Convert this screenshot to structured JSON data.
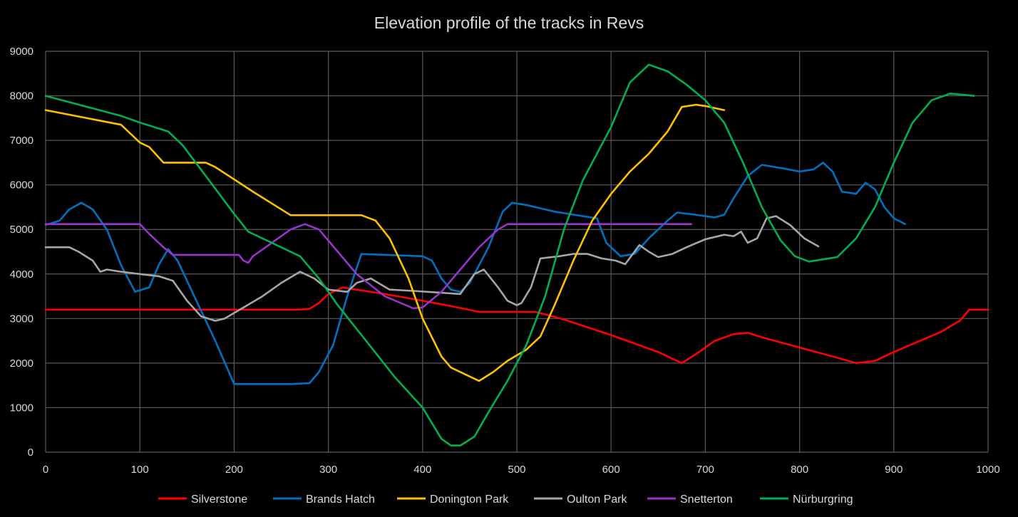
{
  "chart_data": {
    "type": "line",
    "title": "Elevation profile of the tracks in Revs",
    "xlabel": "",
    "ylabel": "",
    "xlim": [
      0,
      1000
    ],
    "ylim": [
      0,
      9000
    ],
    "x_ticks": [
      0,
      100,
      200,
      300,
      400,
      500,
      600,
      700,
      800,
      900,
      1000
    ],
    "y_ticks": [
      0,
      1000,
      2000,
      3000,
      4000,
      5000,
      6000,
      7000,
      8000,
      9000
    ],
    "grid": true,
    "legend_position": "bottom",
    "background": "#000000",
    "series": [
      {
        "name": "Silverstone",
        "color": "#ff0000",
        "points": [
          [
            0,
            3200
          ],
          [
            270,
            3200
          ],
          [
            280,
            3220
          ],
          [
            290,
            3350
          ],
          [
            300,
            3550
          ],
          [
            315,
            3700
          ],
          [
            330,
            3650
          ],
          [
            360,
            3550
          ],
          [
            400,
            3400
          ],
          [
            430,
            3280
          ],
          [
            460,
            3150
          ],
          [
            500,
            3150
          ],
          [
            520,
            3150
          ],
          [
            550,
            2980
          ],
          [
            600,
            2630
          ],
          [
            650,
            2250
          ],
          [
            675,
            2000
          ],
          [
            690,
            2200
          ],
          [
            710,
            2500
          ],
          [
            730,
            2650
          ],
          [
            745,
            2680
          ],
          [
            760,
            2580
          ],
          [
            800,
            2350
          ],
          [
            840,
            2120
          ],
          [
            860,
            2000
          ],
          [
            880,
            2050
          ],
          [
            900,
            2250
          ],
          [
            950,
            2700
          ],
          [
            970,
            2950
          ],
          [
            980,
            3200
          ],
          [
            1000,
            3200
          ]
        ]
      },
      {
        "name": "Brands Hatch",
        "color": "#0070c0",
        "points": [
          [
            0,
            5100
          ],
          [
            15,
            5200
          ],
          [
            25,
            5450
          ],
          [
            38,
            5600
          ],
          [
            50,
            5450
          ],
          [
            65,
            5000
          ],
          [
            80,
            4200
          ],
          [
            95,
            3600
          ],
          [
            110,
            3700
          ],
          [
            120,
            4200
          ],
          [
            130,
            4560
          ],
          [
            140,
            4300
          ],
          [
            160,
            3400
          ],
          [
            180,
            2500
          ],
          [
            200,
            1530
          ],
          [
            260,
            1530
          ],
          [
            280,
            1550
          ],
          [
            290,
            1800
          ],
          [
            305,
            2400
          ],
          [
            320,
            3500
          ],
          [
            335,
            4450
          ],
          [
            400,
            4400
          ],
          [
            410,
            4300
          ],
          [
            420,
            3900
          ],
          [
            430,
            3650
          ],
          [
            440,
            3600
          ],
          [
            450,
            3800
          ],
          [
            470,
            4600
          ],
          [
            485,
            5400
          ],
          [
            495,
            5600
          ],
          [
            510,
            5550
          ],
          [
            540,
            5400
          ],
          [
            570,
            5300
          ],
          [
            585,
            5250
          ],
          [
            595,
            4700
          ],
          [
            610,
            4400
          ],
          [
            625,
            4450
          ],
          [
            640,
            4800
          ],
          [
            660,
            5200
          ],
          [
            670,
            5380
          ],
          [
            690,
            5330
          ],
          [
            710,
            5270
          ],
          [
            720,
            5330
          ],
          [
            730,
            5700
          ],
          [
            745,
            6200
          ],
          [
            760,
            6450
          ],
          [
            780,
            6380
          ],
          [
            800,
            6300
          ],
          [
            815,
            6350
          ],
          [
            825,
            6500
          ],
          [
            835,
            6300
          ],
          [
            845,
            5850
          ],
          [
            860,
            5800
          ],
          [
            870,
            6050
          ],
          [
            880,
            5900
          ],
          [
            890,
            5500
          ],
          [
            900,
            5250
          ],
          [
            912,
            5120
          ]
        ]
      },
      {
        "name": "Donington Park",
        "color": "#ffc000",
        "points": [
          [
            0,
            7680
          ],
          [
            80,
            7350
          ],
          [
            100,
            6950
          ],
          [
            110,
            6850
          ],
          [
            125,
            6500
          ],
          [
            170,
            6500
          ],
          [
            180,
            6400
          ],
          [
            220,
            5850
          ],
          [
            260,
            5320
          ],
          [
            275,
            5320
          ],
          [
            335,
            5320
          ],
          [
            350,
            5200
          ],
          [
            365,
            4800
          ],
          [
            385,
            3900
          ],
          [
            400,
            3000
          ],
          [
            420,
            2150
          ],
          [
            430,
            1900
          ],
          [
            450,
            1700
          ],
          [
            460,
            1600
          ],
          [
            475,
            1800
          ],
          [
            490,
            2050
          ],
          [
            510,
            2300
          ],
          [
            525,
            2600
          ],
          [
            540,
            3300
          ],
          [
            560,
            4300
          ],
          [
            580,
            5200
          ],
          [
            600,
            5800
          ],
          [
            620,
            6300
          ],
          [
            640,
            6700
          ],
          [
            660,
            7200
          ],
          [
            675,
            7750
          ],
          [
            690,
            7800
          ],
          [
            700,
            7770
          ],
          [
            720,
            7680
          ]
        ]
      },
      {
        "name": "Oulton Park",
        "color": "#a6a6a6",
        "points": [
          [
            0,
            4600
          ],
          [
            25,
            4600
          ],
          [
            35,
            4500
          ],
          [
            50,
            4300
          ],
          [
            58,
            4050
          ],
          [
            65,
            4100
          ],
          [
            80,
            4050
          ],
          [
            100,
            4000
          ],
          [
            120,
            3950
          ],
          [
            135,
            3850
          ],
          [
            150,
            3400
          ],
          [
            165,
            3050
          ],
          [
            180,
            2950
          ],
          [
            190,
            3000
          ],
          [
            210,
            3250
          ],
          [
            230,
            3500
          ],
          [
            250,
            3800
          ],
          [
            270,
            4050
          ],
          [
            285,
            3900
          ],
          [
            300,
            3650
          ],
          [
            320,
            3600
          ],
          [
            330,
            3800
          ],
          [
            345,
            3900
          ],
          [
            365,
            3650
          ],
          [
            390,
            3620
          ],
          [
            420,
            3580
          ],
          [
            440,
            3550
          ],
          [
            455,
            4000
          ],
          [
            465,
            4100
          ],
          [
            480,
            3700
          ],
          [
            490,
            3400
          ],
          [
            500,
            3300
          ],
          [
            505,
            3350
          ],
          [
            515,
            3700
          ],
          [
            525,
            4350
          ],
          [
            545,
            4400
          ],
          [
            560,
            4450
          ],
          [
            575,
            4450
          ],
          [
            590,
            4350
          ],
          [
            605,
            4300
          ],
          [
            615,
            4220
          ],
          [
            630,
            4650
          ],
          [
            640,
            4500
          ],
          [
            650,
            4380
          ],
          [
            665,
            4450
          ],
          [
            680,
            4600
          ],
          [
            700,
            4780
          ],
          [
            720,
            4880
          ],
          [
            730,
            4850
          ],
          [
            738,
            4950
          ],
          [
            745,
            4700
          ],
          [
            755,
            4800
          ],
          [
            765,
            5250
          ],
          [
            775,
            5300
          ],
          [
            790,
            5100
          ],
          [
            805,
            4800
          ],
          [
            820,
            4620
          ]
        ]
      },
      {
        "name": "Snetterton",
        "color": "#9933cc",
        "points": [
          [
            0,
            5120
          ],
          [
            100,
            5120
          ],
          [
            110,
            4900
          ],
          [
            125,
            4600
          ],
          [
            135,
            4430
          ],
          [
            160,
            4430
          ],
          [
            205,
            4430
          ],
          [
            210,
            4300
          ],
          [
            215,
            4250
          ],
          [
            220,
            4400
          ],
          [
            240,
            4700
          ],
          [
            260,
            5000
          ],
          [
            275,
            5120
          ],
          [
            290,
            5000
          ],
          [
            310,
            4500
          ],
          [
            330,
            4000
          ],
          [
            360,
            3500
          ],
          [
            390,
            3230
          ],
          [
            400,
            3250
          ],
          [
            420,
            3600
          ],
          [
            440,
            4100
          ],
          [
            460,
            4600
          ],
          [
            480,
            5000
          ],
          [
            490,
            5120
          ],
          [
            550,
            5120
          ],
          [
            685,
            5120
          ]
        ]
      },
      {
        "name": "Nürburgring",
        "color": "#00b050",
        "points": [
          [
            0,
            8000
          ],
          [
            80,
            7550
          ],
          [
            100,
            7400
          ],
          [
            130,
            7200
          ],
          [
            145,
            6900
          ],
          [
            170,
            6200
          ],
          [
            200,
            5350
          ],
          [
            215,
            4950
          ],
          [
            240,
            4700
          ],
          [
            270,
            4400
          ],
          [
            290,
            3900
          ],
          [
            310,
            3300
          ],
          [
            340,
            2500
          ],
          [
            370,
            1700
          ],
          [
            400,
            1000
          ],
          [
            420,
            300
          ],
          [
            430,
            150
          ],
          [
            440,
            150
          ],
          [
            455,
            350
          ],
          [
            470,
            900
          ],
          [
            490,
            1600
          ],
          [
            510,
            2400
          ],
          [
            530,
            3500
          ],
          [
            550,
            5000
          ],
          [
            570,
            6100
          ],
          [
            600,
            7300
          ],
          [
            620,
            8300
          ],
          [
            640,
            8700
          ],
          [
            660,
            8550
          ],
          [
            680,
            8250
          ],
          [
            700,
            7900
          ],
          [
            720,
            7400
          ],
          [
            740,
            6500
          ],
          [
            760,
            5500
          ],
          [
            780,
            4750
          ],
          [
            795,
            4400
          ],
          [
            810,
            4280
          ],
          [
            840,
            4380
          ],
          [
            860,
            4800
          ],
          [
            880,
            5500
          ],
          [
            900,
            6500
          ],
          [
            920,
            7400
          ],
          [
            940,
            7900
          ],
          [
            960,
            8050
          ],
          [
            985,
            8000
          ]
        ]
      }
    ]
  }
}
